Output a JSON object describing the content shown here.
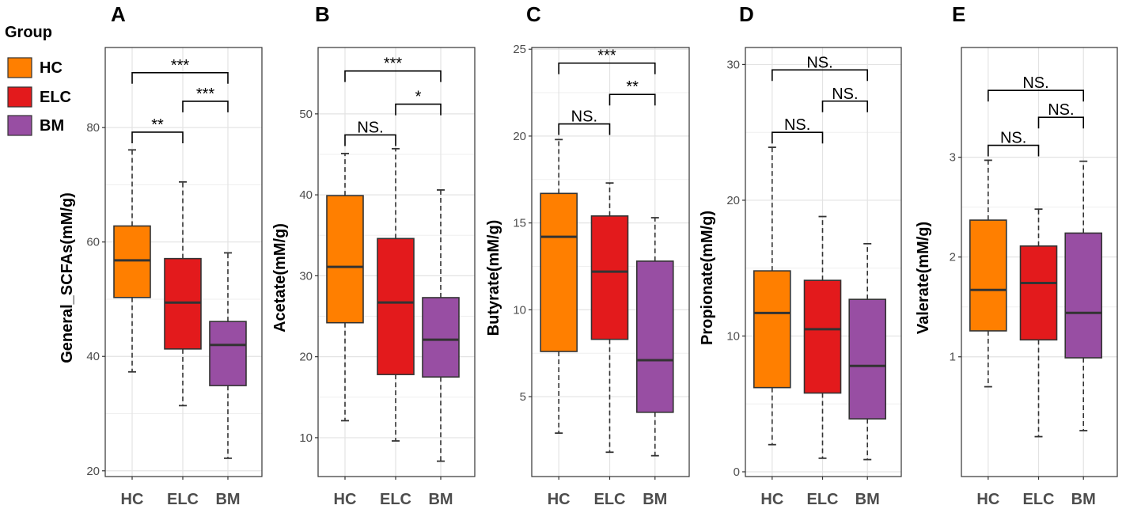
{
  "legend": {
    "title": "Group",
    "entries": [
      {
        "label": "HC",
        "color": "#FF7F00"
      },
      {
        "label": "ELC",
        "color": "#E31A1C"
      },
      {
        "label": "BM",
        "color": "#984EA3"
      }
    ]
  },
  "chart_data": [
    {
      "type": "box",
      "panel": "A",
      "ylabel": "General_SCFAs(mM/g)",
      "categories": [
        "HC",
        "ELC",
        "BM"
      ],
      "ylim": [
        19,
        94
      ],
      "yticks": [
        20,
        40,
        60,
        80
      ],
      "boxes": [
        {
          "min": 37.3,
          "q1": 50.3,
          "median": 56.8,
          "q3": 62.8,
          "max": 76.1
        },
        {
          "min": 31.4,
          "q1": 41.3,
          "median": 49.4,
          "q3": 57.1,
          "max": 70.5
        },
        {
          "min": 22.2,
          "q1": 34.9,
          "median": 42.0,
          "q3": 46.1,
          "max": 58.1
        }
      ],
      "comparisons": [
        {
          "from": 0,
          "to": 1,
          "label": "**",
          "y": 79.2
        },
        {
          "from": 1,
          "to": 2,
          "label": "***",
          "y": 84.6
        },
        {
          "from": 0,
          "to": 2,
          "label": "***",
          "y": 89.6
        }
      ]
    },
    {
      "type": "box",
      "panel": "B",
      "ylabel": "Acetate(mM/g)",
      "categories": [
        "HC",
        "ELC",
        "BM"
      ],
      "ylim": [
        5.2,
        58.2
      ],
      "yticks": [
        10,
        20,
        30,
        40,
        50
      ],
      "boxes": [
        {
          "min": 12.1,
          "q1": 24.2,
          "median": 31.1,
          "q3": 39.9,
          "max": 45.1
        },
        {
          "min": 9.6,
          "q1": 17.8,
          "median": 26.7,
          "q3": 34.6,
          "max": 45.7
        },
        {
          "min": 7.1,
          "q1": 17.5,
          "median": 22.1,
          "q3": 27.3,
          "max": 40.6
        }
      ],
      "comparisons": [
        {
          "from": 0,
          "to": 1,
          "label": "NS.",
          "y": 47.4
        },
        {
          "from": 1,
          "to": 2,
          "label": "*",
          "y": 51.2
        },
        {
          "from": 0,
          "to": 2,
          "label": "***",
          "y": 55.3
        }
      ]
    },
    {
      "type": "box",
      "panel": "C",
      "ylabel": "Butyrate(mM/g)",
      "categories": [
        "HC",
        "ELC",
        "BM"
      ],
      "ylim": [
        0.4,
        25.1
      ],
      "yticks": [
        5,
        10,
        15,
        20,
        25
      ],
      "boxes": [
        {
          "min": 2.9,
          "q1": 7.6,
          "median": 14.2,
          "q3": 16.7,
          "max": 19.8
        },
        {
          "min": 1.8,
          "q1": 8.3,
          "median": 12.2,
          "q3": 15.4,
          "max": 17.3
        },
        {
          "min": 1.6,
          "q1": 4.1,
          "median": 7.1,
          "q3": 12.8,
          "max": 15.3
        }
      ],
      "comparisons": [
        {
          "from": 0,
          "to": 1,
          "label": "NS.",
          "y": 20.7
        },
        {
          "from": 1,
          "to": 2,
          "label": "**",
          "y": 22.4
        },
        {
          "from": 0,
          "to": 2,
          "label": "***",
          "y": 24.2
        }
      ]
    },
    {
      "type": "box",
      "panel": "D",
      "ylabel": "Propionate(mM/g)",
      "categories": [
        "HC",
        "ELC",
        "BM"
      ],
      "ylim": [
        -0.35,
        31.25
      ],
      "yticks": [
        0,
        10,
        20,
        30
      ],
      "boxes": [
        {
          "min": 2.0,
          "q1": 6.2,
          "median": 11.7,
          "q3": 14.8,
          "max": 23.9
        },
        {
          "min": 1.0,
          "q1": 5.8,
          "median": 10.5,
          "q3": 14.1,
          "max": 18.8
        },
        {
          "min": 0.9,
          "q1": 3.9,
          "median": 7.8,
          "q3": 12.7,
          "max": 16.8
        }
      ],
      "comparisons": [
        {
          "from": 0,
          "to": 1,
          "label": "NS.",
          "y": 25.0
        },
        {
          "from": 1,
          "to": 2,
          "label": "NS.",
          "y": 27.3
        },
        {
          "from": 0,
          "to": 2,
          "label": "NS.",
          "y": 29.6
        }
      ]
    },
    {
      "type": "box",
      "panel": "E",
      "ylabel": "Valerate(mM/g)",
      "categories": [
        "HC",
        "ELC",
        "BM"
      ],
      "ylim": [
        -0.2,
        4.1
      ],
      "yticks": [
        1,
        2,
        3
      ],
      "boxes": [
        {
          "min": 0.7,
          "q1": 1.26,
          "median": 1.67,
          "q3": 2.37,
          "max": 2.97
        },
        {
          "min": 0.2,
          "q1": 1.17,
          "median": 1.74,
          "q3": 2.11,
          "max": 2.48
        },
        {
          "min": 0.26,
          "q1": 0.99,
          "median": 1.44,
          "q3": 2.24,
          "max": 2.96
        }
      ],
      "comparisons": [
        {
          "from": 0,
          "to": 1,
          "label": "NS.",
          "y": 3.12
        },
        {
          "from": 1,
          "to": 2,
          "label": "NS.",
          "y": 3.4
        },
        {
          "from": 0,
          "to": 2,
          "label": "NS.",
          "y": 3.67
        }
      ]
    }
  ]
}
